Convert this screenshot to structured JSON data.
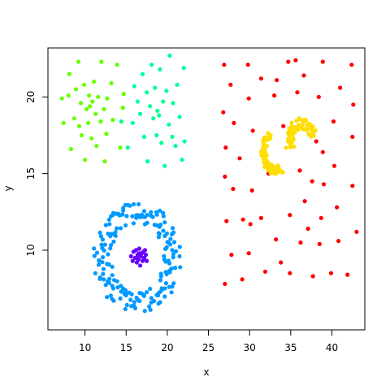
{
  "chart_data": {
    "type": "scatter",
    "title": "",
    "xlabel": "x",
    "ylabel": "y",
    "xlim": [
      5.5,
      44.0
    ],
    "ylim": [
      4.8,
      23.2
    ],
    "xticks": [
      "10",
      "15",
      "20",
      "25",
      "30",
      "35",
      "40"
    ],
    "yticks": [
      "10",
      "15",
      "20"
    ],
    "grid": false,
    "legend": "none",
    "series": [
      {
        "color": "#66ff00",
        "shape": "cluster",
        "center": [
          10.7,
          19.6
        ],
        "spread": [
          2.0,
          1.7
        ],
        "count": 52,
        "points": [
          [
            7.2,
            19.9
          ],
          [
            7.4,
            18.3
          ],
          [
            8.0,
            20.1
          ],
          [
            8.1,
            21.5
          ],
          [
            8.3,
            16.6
          ],
          [
            8.7,
            18.6
          ],
          [
            8.9,
            20.5
          ],
          [
            9.2,
            22.3
          ],
          [
            9.3,
            18.1
          ],
          [
            9.5,
            19.6
          ],
          [
            9.6,
            17.5
          ],
          [
            9.9,
            20.8
          ],
          [
            10.0,
            15.9
          ],
          [
            10.2,
            19.2
          ],
          [
            10.4,
            18.3
          ],
          [
            10.5,
            20.1
          ],
          [
            10.6,
            19.4
          ],
          [
            10.8,
            17.3
          ],
          [
            10.9,
            19.7
          ],
          [
            11.1,
            21.0
          ],
          [
            11.3,
            18.9
          ],
          [
            11.4,
            16.8
          ],
          [
            11.6,
            20.0
          ],
          [
            11.9,
            18.4
          ],
          [
            12.0,
            22.3
          ],
          [
            12.3,
            19.2
          ],
          [
            12.4,
            15.8
          ],
          [
            12.6,
            17.6
          ],
          [
            12.7,
            19.9
          ],
          [
            13.2,
            20.9
          ],
          [
            13.4,
            18.5
          ],
          [
            13.9,
            22.1
          ],
          [
            14.3,
            16.7
          ],
          [
            14.6,
            19.3
          ],
          [
            14.7,
            20.2
          ]
        ]
      },
      {
        "color": "#00ff99",
        "shape": "cluster",
        "center": [
          19.0,
          19.0
        ],
        "spread": [
          1.8,
          2.0
        ],
        "count": 56,
        "points": [
          [
            14.4,
            18.4
          ],
          [
            15.2,
            16.7
          ],
          [
            15.8,
            18.3
          ],
          [
            16.0,
            20.7
          ],
          [
            16.4,
            19.7
          ],
          [
            16.7,
            18.9
          ],
          [
            17.0,
            21.5
          ],
          [
            17.2,
            17.4
          ],
          [
            17.5,
            20.3
          ],
          [
            17.6,
            15.8
          ],
          [
            17.9,
            19.4
          ],
          [
            18.1,
            22.1
          ],
          [
            18.3,
            18.6
          ],
          [
            18.5,
            20.6
          ],
          [
            18.7,
            17.5
          ],
          [
            18.8,
            19.1
          ],
          [
            19.0,
            18.8
          ],
          [
            19.1,
            21.8
          ],
          [
            19.3,
            17.0
          ],
          [
            19.5,
            19.7
          ],
          [
            19.7,
            15.5
          ],
          [
            19.9,
            20.4
          ],
          [
            20.2,
            18.2
          ],
          [
            20.3,
            22.7
          ],
          [
            20.6,
            17.4
          ],
          [
            20.7,
            19.6
          ],
          [
            21.0,
            16.8
          ],
          [
            21.2,
            20.8
          ],
          [
            21.5,
            18.7
          ],
          [
            21.8,
            15.9
          ],
          [
            22.0,
            21.9
          ],
          [
            22.1,
            17.1
          ]
        ]
      },
      {
        "color": "#ff0000",
        "shape": "scatter",
        "count": 86,
        "points": [
          [
            26.9,
            22.1
          ],
          [
            26.8,
            19.0
          ],
          [
            27.1,
            16.7
          ],
          [
            27.0,
            14.8
          ],
          [
            27.2,
            11.9
          ],
          [
            27.0,
            7.8
          ],
          [
            27.7,
            20.8
          ],
          [
            28.0,
            14.0
          ],
          [
            28.1,
            18.3
          ],
          [
            27.8,
            9.7
          ],
          [
            28.8,
            16.0
          ],
          [
            29.2,
            12.0
          ],
          [
            29.1,
            8.1
          ],
          [
            29.8,
            22.1
          ],
          [
            29.9,
            19.9
          ],
          [
            29.9,
            9.8
          ],
          [
            30.4,
            17.8
          ],
          [
            30.3,
            13.9
          ],
          [
            31.4,
            21.2
          ],
          [
            31.4,
            12.1
          ],
          [
            31.9,
            8.6
          ],
          [
            32.3,
            15.0
          ],
          [
            33.0,
            20.1
          ],
          [
            33.2,
            10.7
          ],
          [
            33.3,
            21.1
          ],
          [
            34.1,
            18.1
          ],
          [
            34.7,
            22.3
          ],
          [
            34.9,
            12.3
          ],
          [
            34.9,
            8.5
          ],
          [
            35.6,
            22.4
          ],
          [
            35.8,
            20.3
          ],
          [
            36.1,
            15.2
          ],
          [
            36.2,
            10.5
          ],
          [
            36.6,
            21.4
          ],
          [
            36.7,
            13.2
          ],
          [
            37.1,
            11.4
          ],
          [
            37.7,
            8.3
          ],
          [
            38.1,
            17.1
          ],
          [
            38.4,
            20.0
          ],
          [
            38.5,
            10.4
          ],
          [
            38.7,
            12.1
          ],
          [
            38.9,
            22.3
          ],
          [
            39.0,
            14.3
          ],
          [
            39.9,
            8.5
          ],
          [
            40.2,
            18.4
          ],
          [
            40.3,
            15.5
          ],
          [
            40.6,
            12.8
          ],
          [
            40.8,
            10.6
          ],
          [
            41.0,
            20.6
          ],
          [
            41.9,
            8.4
          ],
          [
            42.4,
            22.1
          ],
          [
            42.5,
            14.2
          ],
          [
            42.5,
            17.4
          ],
          [
            42.6,
            19.5
          ],
          [
            43.0,
            11.2
          ],
          [
            38.9,
            16.4
          ],
          [
            37.6,
            14.5
          ],
          [
            30.1,
            11.7
          ],
          [
            33.8,
            9.2
          ]
        ]
      },
      {
        "color": "#ffdd00",
        "shape": "arc",
        "count": 120,
        "arc": {
          "center": [
            36.3,
            17.0
          ],
          "radii": [
            0.8,
            1.7
          ],
          "from_deg": 20,
          "to_deg": 200
        },
        "arc2": {
          "center": [
            33.2,
            16.5
          ],
          "radii": [
            1.0,
            1.6
          ],
          "from_deg": 120,
          "to_deg": 300
        }
      },
      {
        "color": "#0099ff",
        "shape": "ring",
        "count": 180,
        "ring": {
          "center": [
            16.4,
            9.5
          ],
          "inner_radius": [
            2.8,
            2.0
          ],
          "outer_radius": [
            5.4,
            3.6
          ]
        }
      },
      {
        "color": "#6600ff",
        "shape": "cluster",
        "center": [
          16.5,
          9.6
        ],
        "spread": [
          0.8,
          0.5
        ],
        "count": 28,
        "points": [
          [
            15.6,
            9.6
          ],
          [
            15.8,
            9.3
          ],
          [
            15.9,
            9.9
          ],
          [
            16.1,
            9.5
          ],
          [
            16.2,
            10.0
          ],
          [
            16.3,
            9.2
          ],
          [
            16.4,
            9.7
          ],
          [
            16.5,
            9.4
          ],
          [
            16.6,
            10.1
          ],
          [
            16.7,
            9.0
          ],
          [
            16.8,
            9.6
          ],
          [
            16.9,
            9.8
          ],
          [
            17.0,
            9.3
          ],
          [
            17.1,
            9.9
          ],
          [
            17.2,
            9.5
          ],
          [
            17.4,
            9.7
          ],
          [
            17.5,
            9.3
          ],
          [
            16.6,
            9.8
          ],
          [
            16.3,
            9.5
          ],
          [
            17.3,
            10.0
          ]
        ]
      }
    ]
  }
}
